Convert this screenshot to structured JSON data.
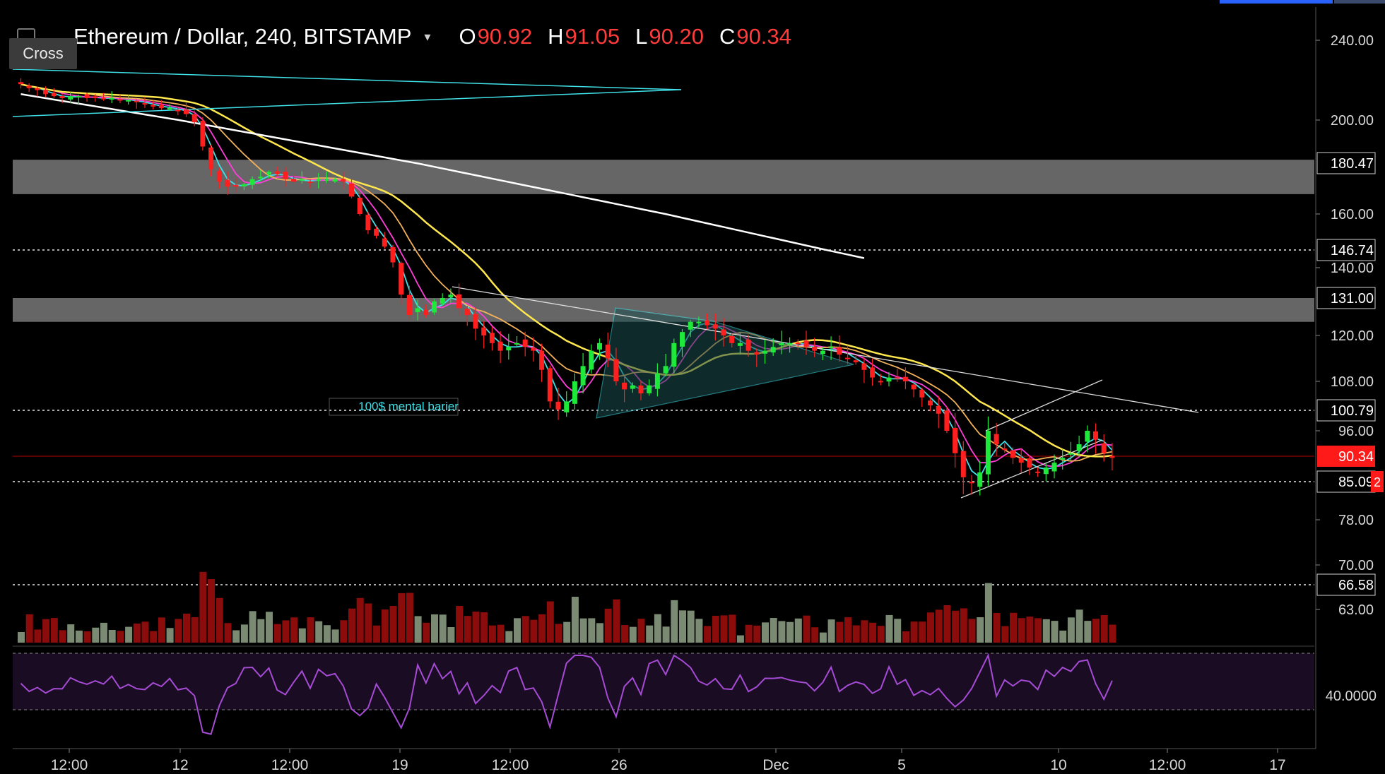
{
  "header": {
    "symbol": "Ethereum / Dollar, 240, BITSTAMP",
    "caret": "▾",
    "o_label": "O",
    "o": "90.92",
    "h_label": "H",
    "h": "91.05",
    "l_label": "L",
    "l": "90.20",
    "c_label": "C",
    "c": "90.34"
  },
  "tooltip": {
    "label": "Cross"
  },
  "colors": {
    "up": "#1ee83a",
    "down": "#ff1f1f",
    "vol_up": "#7b8a73",
    "vol_down": "#8c0b0b",
    "ma_white": "#ffffff",
    "ma_yellow": "#ffe84d",
    "ma_orange": "#f3b15a",
    "ma_magenta": "#ff3dd9",
    "ma_cyan": "#3fe0e8",
    "rsi": "#a64bd6",
    "zone": "#6b6b6b",
    "cyan_line": "#40e0e8"
  },
  "chart_data": {
    "type": "candlestick",
    "symbol": "Ethereum / Dollar, 240, BITSTAMP",
    "ohlc_last": {
      "open": 90.92,
      "high": 91.05,
      "low": 90.2,
      "close": 90.34
    },
    "price_axis_ticks": [
      "240.00",
      "200.00",
      "160.00",
      "140.00",
      "120.00",
      "108.00",
      "96.00",
      "78.00",
      "70.00",
      "63.00"
    ],
    "price_axis_ticks_values": [
      240,
      200,
      160,
      140,
      120,
      108,
      96,
      78,
      70,
      63
    ],
    "price_tags": [
      {
        "label": "180.47",
        "value": 180.47,
        "style": "plain"
      },
      {
        "label": "146.74",
        "value": 146.74,
        "style": "plain"
      },
      {
        "label": "131.00",
        "value": 131.0,
        "style": "plain"
      },
      {
        "label": "100.79",
        "value": 100.79,
        "style": "plain"
      },
      {
        "label": "90.34",
        "value": 90.34,
        "style": "current"
      },
      {
        "label": "85.09",
        "value": 85.09,
        "style": "plain"
      },
      {
        "label": "66.58",
        "value": 66.58,
        "style": "plain"
      }
    ],
    "current_tag_suffix": "2",
    "rsi_ticks": [
      "40.0000"
    ],
    "x_ticks": [
      "12:00",
      "12",
      "12:00",
      "19",
      "12:00",
      "26",
      "Dec",
      "5",
      "10",
      "12:00",
      "17"
    ],
    "horizontal_dotted_levels": [
      146.74,
      100.79,
      85.09,
      66.58
    ],
    "resistance_zones": [
      {
        "from": 168,
        "to": 182
      },
      {
        "from": 124,
        "to": 131
      }
    ],
    "annotation": "100$ mental barier",
    "closes": [
      218,
      216,
      215,
      213,
      212,
      211,
      212,
      212,
      211,
      211,
      211,
      211,
      210,
      210,
      209,
      208,
      207,
      206,
      206,
      205,
      203,
      199,
      188,
      178,
      173,
      171,
      171,
      172,
      174,
      175,
      177,
      176,
      174,
      173,
      174,
      173,
      174,
      174,
      174,
      173,
      167,
      160,
      154,
      152,
      148,
      142,
      132,
      126,
      128,
      126,
      130,
      131,
      132,
      128,
      126,
      122,
      120,
      118,
      116,
      117,
      118,
      117,
      116,
      111,
      103,
      101,
      103,
      108,
      112,
      116,
      118,
      114,
      108,
      106,
      107,
      105,
      107,
      110,
      112,
      118,
      121,
      124,
      124,
      123,
      122,
      120,
      118,
      118,
      116,
      115,
      116,
      117,
      118,
      118,
      118,
      117,
      116,
      116,
      117,
      115,
      114,
      113,
      111,
      109,
      108,
      109,
      109,
      108,
      106,
      104,
      102,
      100,
      96,
      91,
      86,
      85,
      87,
      96,
      93,
      92,
      90,
      89,
      88,
      87,
      88,
      89,
      90,
      91,
      93,
      96,
      94,
      91,
      90
    ]
  }
}
